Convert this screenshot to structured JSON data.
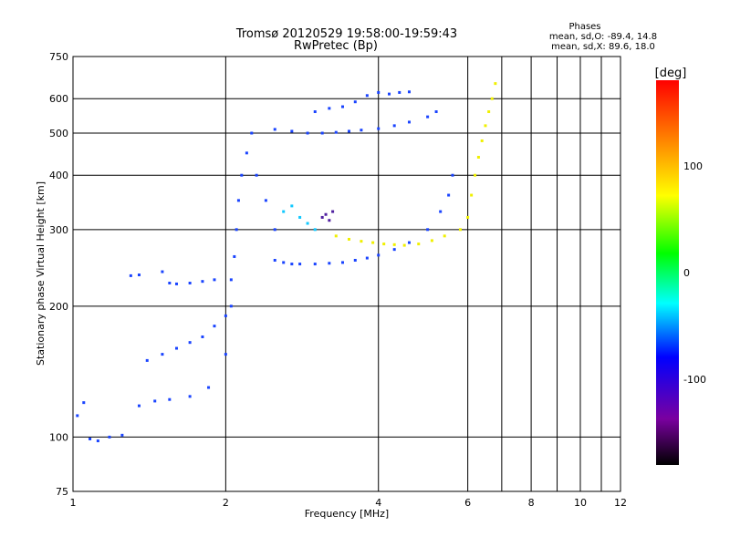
{
  "chart_data": {
    "type": "scatter",
    "title": "Tromsø 20120529 19:58:00-19:59:43",
    "subtitle": "RwPretec (Bp)",
    "xlabel": "Frequency [MHz]",
    "ylabel": "Stationary phase Virtual Height [km]",
    "x_scale": "log",
    "y_scale": "log",
    "xlim": [
      1,
      12
    ],
    "ylim": [
      75,
      750
    ],
    "x_ticks": [
      1,
      2,
      4,
      6,
      8,
      10,
      12
    ],
    "y_ticks": [
      75,
      100,
      200,
      300,
      400,
      500,
      600,
      750
    ],
    "x_minor_lines": [
      7,
      9,
      11
    ],
    "y_minor_lines": [],
    "grid": true,
    "phases_box": {
      "title": "Phases",
      "line1": "mean, sd,O: -89.4, 14.8",
      "line2": "mean, sd,X: 89.6, 18.0"
    },
    "colorbar": {
      "label": "[deg]",
      "range": [
        -180,
        180
      ],
      "ticks": [
        100,
        0,
        -100
      ],
      "colors": [
        "#000000",
        "#7a00a0",
        "#0000ff",
        "#00ffff",
        "#00ff00",
        "#ffff00",
        "#ff8000",
        "#ff0000"
      ]
    },
    "series": [
      {
        "phase": -100,
        "color": "#1a44ff",
        "x": [
          1.02,
          1.05,
          1.08,
          1.12,
          1.18,
          1.25,
          1.35,
          1.45,
          1.55,
          1.7,
          1.85,
          2.0
        ],
        "y": [
          112,
          120,
          99,
          98,
          100,
          101,
          118,
          121,
          122,
          124,
          130,
          155
        ]
      },
      {
        "phase": -100,
        "color": "#1a44ff",
        "x": [
          1.4,
          1.5,
          1.6,
          1.7,
          1.8,
          1.9,
          2.0,
          2.05
        ],
        "y": [
          150,
          155,
          160,
          165,
          170,
          180,
          190,
          200
        ]
      },
      {
        "phase": -100,
        "color": "#1a44ff",
        "x": [
          1.3,
          1.35,
          1.5,
          1.55,
          1.6,
          1.7,
          1.8,
          1.9
        ],
        "y": [
          235,
          236,
          240,
          226,
          225,
          226,
          228,
          230
        ]
      },
      {
        "phase": -100,
        "color": "#1a44ff",
        "x": [
          2.05,
          2.08,
          2.1,
          2.12,
          2.15,
          2.2,
          2.25,
          2.3,
          2.4,
          2.5
        ],
        "y": [
          230,
          260,
          300,
          350,
          400,
          450,
          500,
          400,
          350,
          300
        ]
      },
      {
        "phase": -100,
        "color": "#1a44ff",
        "x": [
          2.5,
          2.6,
          2.7,
          2.8,
          3.0,
          3.2,
          3.4,
          3.6,
          3.8,
          4.0,
          4.3,
          4.6,
          5.0,
          5.3,
          5.5,
          5.6
        ],
        "y": [
          255,
          252,
          250,
          250,
          250,
          251,
          252,
          255,
          258,
          262,
          270,
          280,
          300,
          330,
          360,
          400
        ]
      },
      {
        "phase": -100,
        "color": "#1a44ff",
        "x": [
          2.5,
          2.7,
          2.9,
          3.1,
          3.3,
          3.5,
          3.7,
          4.0,
          4.3,
          4.6,
          5.0,
          5.2
        ],
        "y": [
          510,
          505,
          500,
          500,
          502,
          505,
          508,
          512,
          520,
          530,
          545,
          560
        ]
      },
      {
        "phase": -100,
        "color": "#1a44ff",
        "x": [
          3.0,
          3.2,
          3.4,
          3.6,
          3.8,
          4.0,
          4.2,
          4.4,
          4.6
        ],
        "y": [
          560,
          570,
          575,
          590,
          610,
          620,
          615,
          620,
          622
        ]
      },
      {
        "phase": 90,
        "color": "#f0f000",
        "x": [
          3.3,
          3.5,
          3.7,
          3.9,
          4.1,
          4.3,
          4.5,
          4.8,
          5.1,
          5.4,
          5.8,
          6.0
        ],
        "y": [
          290,
          285,
          282,
          280,
          278,
          277,
          276,
          278,
          283,
          290,
          300,
          320
        ]
      },
      {
        "phase": 90,
        "color": "#f0f000",
        "x": [
          6.1,
          6.2,
          6.3,
          6.4,
          6.5,
          6.6,
          6.7,
          6.8
        ],
        "y": [
          360,
          400,
          440,
          480,
          520,
          560,
          600,
          650
        ]
      },
      {
        "phase": -40,
        "color": "#10c8ff",
        "x": [
          2.6,
          2.7,
          2.8,
          2.9,
          3.0
        ],
        "y": [
          330,
          340,
          320,
          310,
          300
        ]
      },
      {
        "phase": -140,
        "color": "#5020a0",
        "x": [
          3.1,
          3.15,
          3.2,
          3.25
        ],
        "y": [
          320,
          325,
          315,
          330
        ]
      }
    ]
  }
}
